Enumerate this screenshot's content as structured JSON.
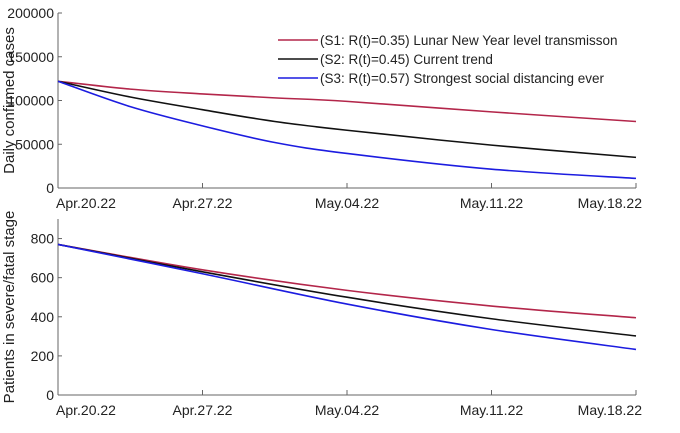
{
  "chart_data": [
    {
      "type": "line",
      "title": "",
      "xlabel": "",
      "ylabel": "Daily confirmed cases",
      "x_ticks": [
        "Apr.20.22",
        "Apr.27.22",
        "May.04.22",
        "May.11.22",
        "May.18.22"
      ],
      "x_days": [
        0,
        3.5,
        7,
        10.5,
        14,
        21,
        28
      ],
      "xlim": [
        0,
        28
      ],
      "ylim": [
        0,
        200000
      ],
      "y_ticks": [
        0,
        50000,
        100000,
        150000,
        200000
      ],
      "legend_position": "top-right",
      "series": [
        {
          "name": "(S1: R(t)=0.35) Lunar New Year level transmisson",
          "color": "#b3264a",
          "values": [
            122000,
            113000,
            107500,
            103000,
            99000,
            87000,
            76000
          ]
        },
        {
          "name": "(S2: R(t)=0.45) Current trend",
          "color": "#111111",
          "values": [
            122000,
            104000,
            89500,
            76000,
            66000,
            49000,
            35000
          ]
        },
        {
          "name": "(S3: R(t)=0.57) Strongest social distancing ever",
          "color": "#1c1ce0",
          "values": [
            122000,
            93000,
            71000,
            52000,
            39500,
            21500,
            11000
          ]
        }
      ]
    },
    {
      "type": "line",
      "title": "",
      "xlabel": "",
      "ylabel": "Patients in severe/fatal stage",
      "x_ticks": [
        "Apr.20.22",
        "Apr.27.22",
        "May.04.22",
        "May.11.22",
        "May.18.22"
      ],
      "x_days": [
        0,
        7,
        14,
        21,
        28
      ],
      "xlim": [
        0,
        28
      ],
      "ylim": [
        0,
        900
      ],
      "y_ticks": [
        0,
        200,
        400,
        600,
        800
      ],
      "series": [
        {
          "name": "S1",
          "color": "#b3264a",
          "values": [
            770,
            640,
            535,
            455,
            395
          ]
        },
        {
          "name": "S2",
          "color": "#111111",
          "values": [
            770,
            630,
            500,
            390,
            302
          ]
        },
        {
          "name": "S3",
          "color": "#1c1ce0",
          "values": [
            770,
            620,
            465,
            335,
            233
          ]
        }
      ]
    }
  ]
}
